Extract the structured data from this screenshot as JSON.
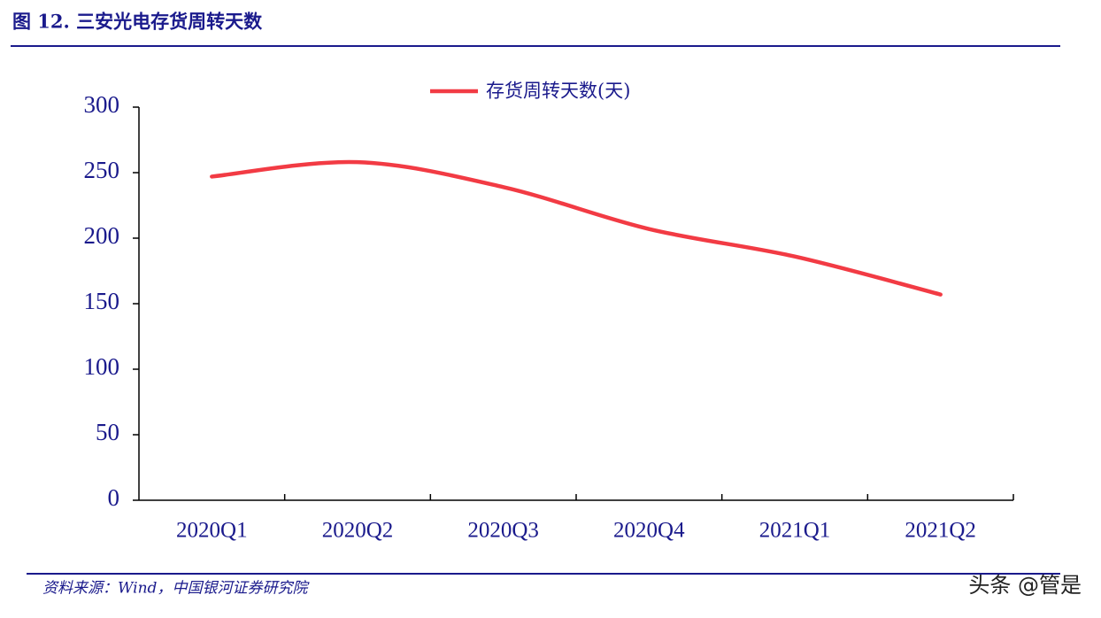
{
  "chart_data": {
    "type": "line",
    "title": "图 12. 三安光电存货周转天数",
    "categories": [
      "2020Q1",
      "2020Q2",
      "2020Q3",
      "2020Q4",
      "2021Q1",
      "2021Q2"
    ],
    "series": [
      {
        "name": "存货周转天数(天)",
        "color": "#f23b44",
        "values": [
          247,
          258,
          239,
          207,
          186,
          157
        ]
      }
    ],
    "ylim": [
      0,
      300
    ],
    "yticks": [
      0,
      50,
      100,
      150,
      200,
      250,
      300
    ],
    "grid": false,
    "legend": "top"
  },
  "footer": {
    "source": "资料来源：Wind，中国银河证券研究院",
    "watermark": "头条 @管是"
  }
}
